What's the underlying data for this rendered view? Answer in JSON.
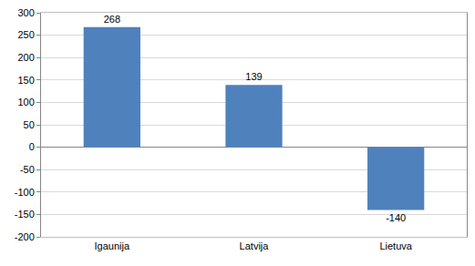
{
  "chart_data": {
    "type": "bar",
    "categories": [
      "Igaunija",
      "Latvija",
      "Lietuva"
    ],
    "values": [
      268,
      139,
      -140
    ],
    "color": "#4f81bd",
    "ylim": [
      -200,
      300
    ],
    "yticks": [
      -200,
      -150,
      -100,
      -50,
      0,
      50,
      100,
      150,
      200,
      250,
      300
    ],
    "grid": true,
    "data_labels": true
  }
}
